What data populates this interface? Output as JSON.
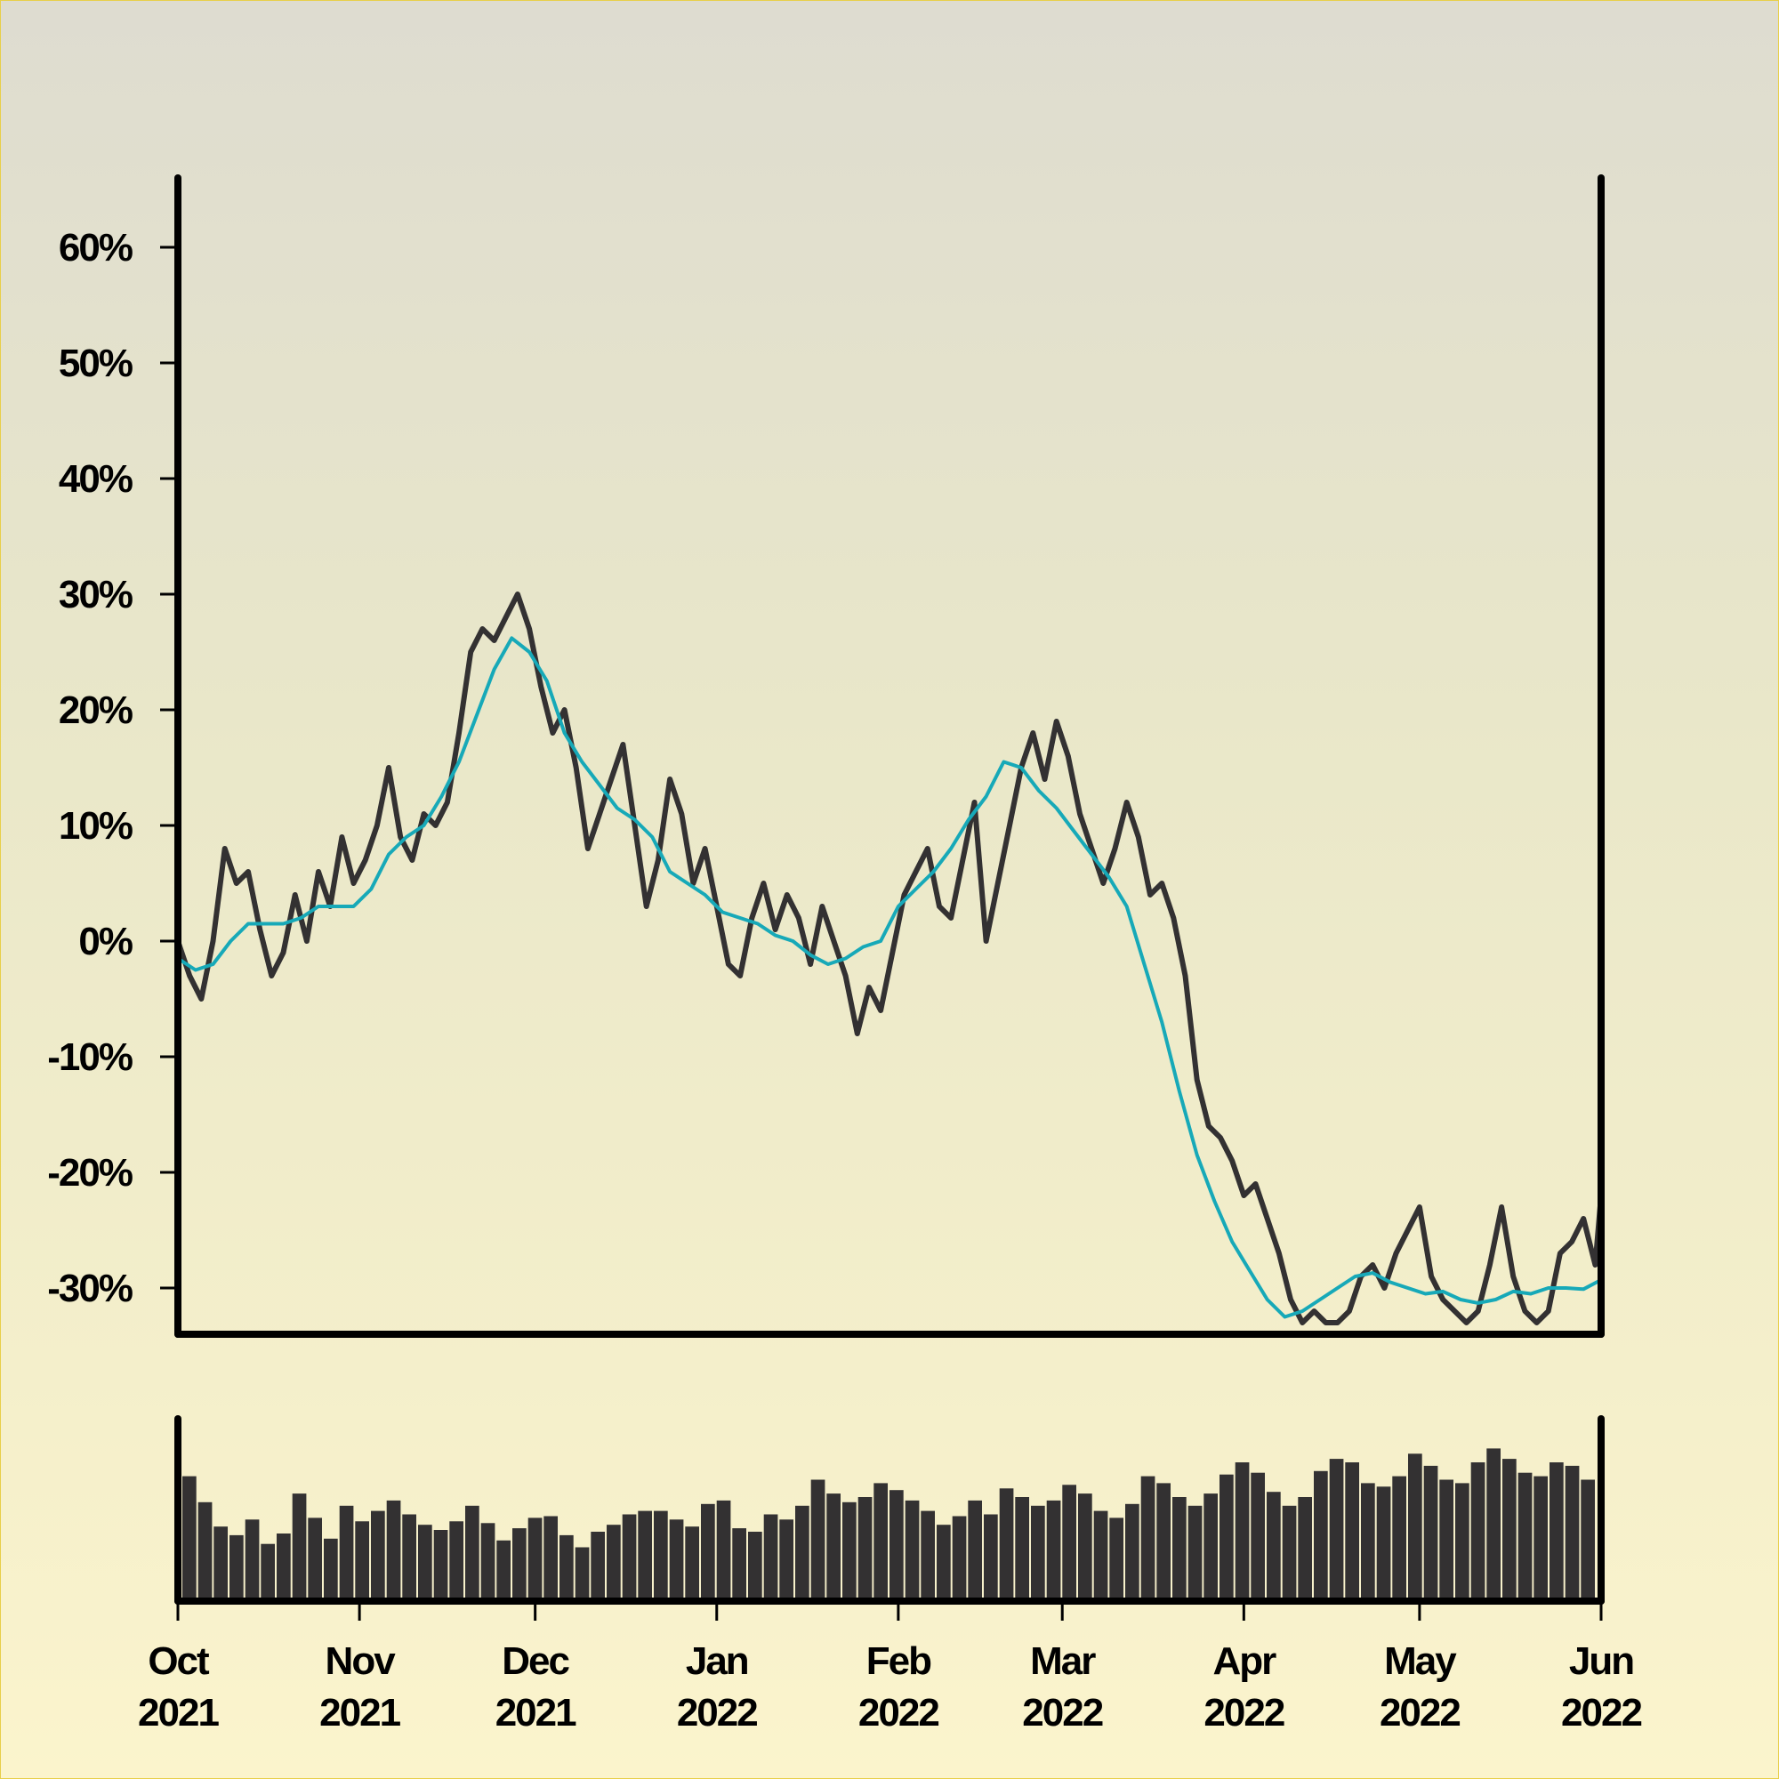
{
  "chart_data": [
    {
      "type": "line",
      "title": "",
      "xlabel": "",
      "ylabel": "",
      "y_unit": "%",
      "ylim": [
        -34,
        66
      ],
      "xlim": [
        "2021-10-01",
        "2022-06-01"
      ],
      "grid": false,
      "y_ticks": [
        {
          "value": 60,
          "label": "60%"
        },
        {
          "value": 50,
          "label": "50%"
        },
        {
          "value": 40,
          "label": "40%"
        },
        {
          "value": 30,
          "label": "30%"
        },
        {
          "value": 20,
          "label": "20%"
        },
        {
          "value": 10,
          "label": "10%"
        },
        {
          "value": 0,
          "label": "0%"
        },
        {
          "value": -10,
          "label": "-10%"
        },
        {
          "value": -20,
          "label": "-20%"
        },
        {
          "value": -30,
          "label": "-30%"
        }
      ],
      "x_ticks": [
        {
          "date": "2021-10-01",
          "month": "Oct",
          "year": "2021"
        },
        {
          "date": "2021-11-01",
          "month": "Nov",
          "year": "2021"
        },
        {
          "date": "2021-12-01",
          "month": "Dec",
          "year": "2021"
        },
        {
          "date": "2022-01-01",
          "month": "Jan",
          "year": "2022"
        },
        {
          "date": "2022-02-01",
          "month": "Feb",
          "year": "2022"
        },
        {
          "date": "2022-03-01",
          "month": "Mar",
          "year": "2022"
        },
        {
          "date": "2022-04-01",
          "month": "Apr",
          "year": "2022"
        },
        {
          "date": "2022-05-01",
          "month": "May",
          "year": "2022"
        },
        {
          "date": "2022-06-01",
          "month": "Jun",
          "year": "2022"
        }
      ],
      "series": [
        {
          "color": "#333132",
          "points": [
            [
              "2021-10-01",
              0
            ],
            [
              "2021-10-03",
              -3
            ],
            [
              "2021-10-05",
              -5
            ],
            [
              "2021-10-07",
              0
            ],
            [
              "2021-10-09",
              8
            ],
            [
              "2021-10-11",
              5
            ],
            [
              "2021-10-13",
              6
            ],
            [
              "2021-10-15",
              1
            ],
            [
              "2021-10-17",
              -3
            ],
            [
              "2021-10-19",
              -1
            ],
            [
              "2021-10-21",
              4
            ],
            [
              "2021-10-23",
              0
            ],
            [
              "2021-10-25",
              6
            ],
            [
              "2021-10-27",
              3
            ],
            [
              "2021-10-29",
              9
            ],
            [
              "2021-10-31",
              5
            ],
            [
              "2021-11-02",
              7
            ],
            [
              "2021-11-04",
              10
            ],
            [
              "2021-11-06",
              15
            ],
            [
              "2021-11-08",
              9
            ],
            [
              "2021-11-10",
              7
            ],
            [
              "2021-11-12",
              11
            ],
            [
              "2021-11-14",
              10
            ],
            [
              "2021-11-16",
              12
            ],
            [
              "2021-11-18",
              18
            ],
            [
              "2021-11-20",
              25
            ],
            [
              "2021-11-22",
              27
            ],
            [
              "2021-11-24",
              26
            ],
            [
              "2021-11-26",
              28
            ],
            [
              "2021-11-28",
              30
            ],
            [
              "2021-11-30",
              27
            ],
            [
              "2021-12-02",
              22
            ],
            [
              "2021-12-04",
              18
            ],
            [
              "2021-12-06",
              20
            ],
            [
              "2021-12-08",
              15
            ],
            [
              "2021-12-10",
              8
            ],
            [
              "2021-12-12",
              11
            ],
            [
              "2021-12-14",
              14
            ],
            [
              "2021-12-16",
              17
            ],
            [
              "2021-12-18",
              10
            ],
            [
              "2021-12-20",
              3
            ],
            [
              "2021-12-22",
              7
            ],
            [
              "2021-12-24",
              14
            ],
            [
              "2021-12-26",
              11
            ],
            [
              "2021-12-28",
              5
            ],
            [
              "2021-12-30",
              8
            ],
            [
              "2022-01-01",
              3
            ],
            [
              "2022-01-03",
              -2
            ],
            [
              "2022-01-05",
              -3
            ],
            [
              "2022-01-07",
              2
            ],
            [
              "2022-01-09",
              5
            ],
            [
              "2022-01-11",
              1
            ],
            [
              "2022-01-13",
              4
            ],
            [
              "2022-01-15",
              2
            ],
            [
              "2022-01-17",
              -2
            ],
            [
              "2022-01-19",
              3
            ],
            [
              "2022-01-21",
              0
            ],
            [
              "2022-01-23",
              -3
            ],
            [
              "2022-01-25",
              -8
            ],
            [
              "2022-01-27",
              -4
            ],
            [
              "2022-01-29",
              -6
            ],
            [
              "2022-01-31",
              -1
            ],
            [
              "2022-02-02",
              4
            ],
            [
              "2022-02-04",
              6
            ],
            [
              "2022-02-06",
              8
            ],
            [
              "2022-02-08",
              3
            ],
            [
              "2022-02-10",
              2
            ],
            [
              "2022-02-12",
              7
            ],
            [
              "2022-02-14",
              12
            ],
            [
              "2022-02-16",
              0
            ],
            [
              "2022-02-18",
              5
            ],
            [
              "2022-02-20",
              10
            ],
            [
              "2022-02-22",
              15
            ],
            [
              "2022-02-24",
              18
            ],
            [
              "2022-02-26",
              14
            ],
            [
              "2022-02-28",
              19
            ],
            [
              "2022-03-02",
              16
            ],
            [
              "2022-03-04",
              11
            ],
            [
              "2022-03-06",
              8
            ],
            [
              "2022-03-08",
              5
            ],
            [
              "2022-03-10",
              8
            ],
            [
              "2022-03-12",
              12
            ],
            [
              "2022-03-14",
              9
            ],
            [
              "2022-03-16",
              4
            ],
            [
              "2022-03-18",
              5
            ],
            [
              "2022-03-20",
              2
            ],
            [
              "2022-03-22",
              -3
            ],
            [
              "2022-03-24",
              -12
            ],
            [
              "2022-03-26",
              -16
            ],
            [
              "2022-03-28",
              -17
            ],
            [
              "2022-03-30",
              -19
            ],
            [
              "2022-04-01",
              -22
            ],
            [
              "2022-04-03",
              -21
            ],
            [
              "2022-04-05",
              -24
            ],
            [
              "2022-04-07",
              -27
            ],
            [
              "2022-04-09",
              -31
            ],
            [
              "2022-04-11",
              -33
            ],
            [
              "2022-04-13",
              -32
            ],
            [
              "2022-04-15",
              -33
            ],
            [
              "2022-04-17",
              -33
            ],
            [
              "2022-04-19",
              -32
            ],
            [
              "2022-04-21",
              -29
            ],
            [
              "2022-04-23",
              -28
            ],
            [
              "2022-04-25",
              -30
            ],
            [
              "2022-04-27",
              -27
            ],
            [
              "2022-04-29",
              -25
            ],
            [
              "2022-05-01",
              -23
            ],
            [
              "2022-05-03",
              -29
            ],
            [
              "2022-05-05",
              -31
            ],
            [
              "2022-05-07",
              -32
            ],
            [
              "2022-05-09",
              -33
            ],
            [
              "2022-05-11",
              -32
            ],
            [
              "2022-05-13",
              -28
            ],
            [
              "2022-05-15",
              -23
            ],
            [
              "2022-05-17",
              -29
            ],
            [
              "2022-05-19",
              -32
            ],
            [
              "2022-05-21",
              -33
            ],
            [
              "2022-05-23",
              -32
            ],
            [
              "2022-05-25",
              -27
            ],
            [
              "2022-05-27",
              -26
            ],
            [
              "2022-05-29",
              -24
            ],
            [
              "2022-05-31",
              -28
            ],
            [
              "2022-06-01",
              -22
            ]
          ]
        },
        {
          "color": "#17a9b8",
          "points": [
            [
              "2021-10-01",
              -1.5
            ],
            [
              "2021-10-04",
              -2.5
            ],
            [
              "2021-10-07",
              -2
            ],
            [
              "2021-10-10",
              0
            ],
            [
              "2021-10-13",
              1.5
            ],
            [
              "2021-10-16",
              1.5
            ],
            [
              "2021-10-19",
              1.5
            ],
            [
              "2021-10-22",
              2
            ],
            [
              "2021-10-25",
              3
            ],
            [
              "2021-10-28",
              3
            ],
            [
              "2021-10-31",
              3
            ],
            [
              "2021-11-03",
              4.5
            ],
            [
              "2021-11-06",
              7.5
            ],
            [
              "2021-11-09",
              9
            ],
            [
              "2021-11-12",
              10
            ],
            [
              "2021-11-15",
              12.5
            ],
            [
              "2021-11-18",
              15.5
            ],
            [
              "2021-11-21",
              19.5
            ],
            [
              "2021-11-24",
              23.5
            ],
            [
              "2021-11-27",
              26.2
            ],
            [
              "2021-11-30",
              25
            ],
            [
              "2021-12-03",
              22.5
            ],
            [
              "2021-12-06",
              18
            ],
            [
              "2021-12-09",
              15.5
            ],
            [
              "2021-12-12",
              13.5
            ],
            [
              "2021-12-15",
              11.5
            ],
            [
              "2021-12-18",
              10.5
            ],
            [
              "2021-12-21",
              9
            ],
            [
              "2021-12-24",
              6
            ],
            [
              "2021-12-27",
              5
            ],
            [
              "2021-12-30",
              4
            ],
            [
              "2022-01-02",
              2.5
            ],
            [
              "2022-01-05",
              2
            ],
            [
              "2022-01-08",
              1.5
            ],
            [
              "2022-01-11",
              0.5
            ],
            [
              "2022-01-14",
              0
            ],
            [
              "2022-01-17",
              -1.2
            ],
            [
              "2022-01-20",
              -2
            ],
            [
              "2022-01-23",
              -1.5
            ],
            [
              "2022-01-26",
              -0.5
            ],
            [
              "2022-01-29",
              0
            ],
            [
              "2022-02-01",
              3
            ],
            [
              "2022-02-04",
              4.5
            ],
            [
              "2022-02-07",
              6
            ],
            [
              "2022-02-10",
              8
            ],
            [
              "2022-02-13",
              10.5
            ],
            [
              "2022-02-16",
              12.5
            ],
            [
              "2022-02-19",
              15.5
            ],
            [
              "2022-02-22",
              15
            ],
            [
              "2022-02-25",
              13
            ],
            [
              "2022-02-28",
              11.5
            ],
            [
              "2022-03-03",
              9.5
            ],
            [
              "2022-03-06",
              7.5
            ],
            [
              "2022-03-09",
              5.5
            ],
            [
              "2022-03-12",
              3
            ],
            [
              "2022-03-15",
              -2
            ],
            [
              "2022-03-18",
              -7
            ],
            [
              "2022-03-21",
              -13
            ],
            [
              "2022-03-24",
              -18.5
            ],
            [
              "2022-03-27",
              -22.5
            ],
            [
              "2022-03-30",
              -26
            ],
            [
              "2022-04-02",
              -28.5
            ],
            [
              "2022-04-05",
              -31
            ],
            [
              "2022-04-08",
              -32.5
            ],
            [
              "2022-04-11",
              -32
            ],
            [
              "2022-04-14",
              -31
            ],
            [
              "2022-04-17",
              -30
            ],
            [
              "2022-04-20",
              -29
            ],
            [
              "2022-04-23",
              -28.7
            ],
            [
              "2022-04-26",
              -29.5
            ],
            [
              "2022-04-29",
              -30
            ],
            [
              "2022-05-02",
              -30.5
            ],
            [
              "2022-05-05",
              -30.3
            ],
            [
              "2022-05-08",
              -31
            ],
            [
              "2022-05-11",
              -31.3
            ],
            [
              "2022-05-14",
              -31
            ],
            [
              "2022-05-17",
              -30.3
            ],
            [
              "2022-05-20",
              -30.5
            ],
            [
              "2022-05-23",
              -30
            ],
            [
              "2022-05-26",
              -30
            ],
            [
              "2022-05-29",
              -30.1
            ],
            [
              "2022-06-01",
              -29.3
            ]
          ]
        }
      ]
    },
    {
      "type": "bar",
      "title": "",
      "xlabel": "",
      "ylabel": "",
      "y_ticks": [],
      "color": "#333132",
      "ylim": [
        0,
        1
      ],
      "values": [
        0.72,
        0.57,
        0.43,
        0.38,
        0.47,
        0.33,
        0.39,
        0.62,
        0.48,
        0.36,
        0.55,
        0.46,
        0.52,
        0.58,
        0.5,
        0.44,
        0.41,
        0.46,
        0.55,
        0.45,
        0.35,
        0.42,
        0.48,
        0.49,
        0.38,
        0.31,
        0.4,
        0.44,
        0.5,
        0.52,
        0.52,
        0.47,
        0.43,
        0.56,
        0.58,
        0.42,
        0.4,
        0.5,
        0.47,
        0.55,
        0.7,
        0.62,
        0.57,
        0.6,
        0.68,
        0.64,
        0.58,
        0.52,
        0.44,
        0.49,
        0.58,
        0.5,
        0.65,
        0.6,
        0.55,
        0.58,
        0.67,
        0.62,
        0.52,
        0.48,
        0.56,
        0.72,
        0.68,
        0.6,
        0.55,
        0.62,
        0.73,
        0.8,
        0.74,
        0.63,
        0.55,
        0.6,
        0.75,
        0.82,
        0.8,
        0.68,
        0.66,
        0.72,
        0.85,
        0.78,
        0.7,
        0.68,
        0.8,
        0.88,
        0.82,
        0.74,
        0.72,
        0.8,
        0.78,
        0.7
      ]
    }
  ]
}
